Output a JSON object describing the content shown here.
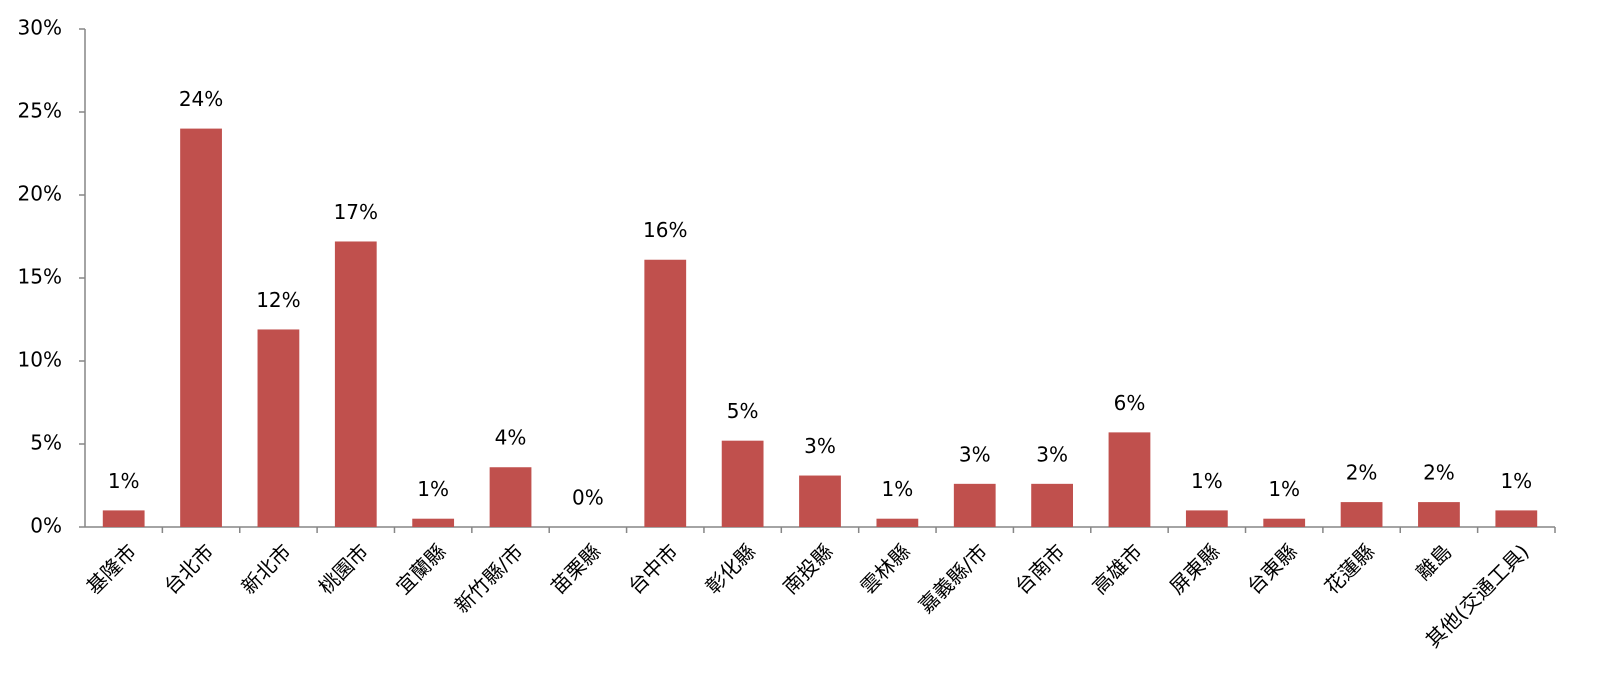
{
  "chart_data": {
    "type": "bar",
    "categories": [
      "基隆市",
      "台北市",
      "新北市",
      "桃園市",
      "宜蘭縣",
      "新竹縣/市",
      "苗栗縣",
      "台中市",
      "彰化縣",
      "南投縣",
      "雲林縣",
      "嘉義縣/市",
      "台南市",
      "高雄市",
      "屏東縣",
      "台東縣",
      "花蓮縣",
      "離島",
      "其他(交通工具)"
    ],
    "values": [
      1.0,
      24.0,
      11.9,
      17.2,
      0.5,
      3.6,
      0,
      16.1,
      5.2,
      3.1,
      0.5,
      2.6,
      2.6,
      5.7,
      1.0,
      0.5,
      1.5,
      1.5,
      1.0
    ],
    "value_labels": [
      "1%",
      "24%",
      "12%",
      "17%",
      "1%",
      "4%",
      "0%",
      "16%",
      "5%",
      "3%",
      "1%",
      "3%",
      "3%",
      "6%",
      "1%",
      "1%",
      "2%",
      "2%",
      "1%"
    ],
    "color": "#c0504d",
    "ylim": [
      0,
      30
    ],
    "yticks": [
      {
        "value": 0,
        "label": "0%"
      },
      {
        "value": 5,
        "label": "5%"
      },
      {
        "value": 10,
        "label": "10%"
      },
      {
        "value": 15,
        "label": "15%"
      },
      {
        "value": 20,
        "label": "20%"
      },
      {
        "value": 25,
        "label": "25%"
      },
      {
        "value": 30,
        "label": "30%"
      }
    ],
    "grid": false
  }
}
